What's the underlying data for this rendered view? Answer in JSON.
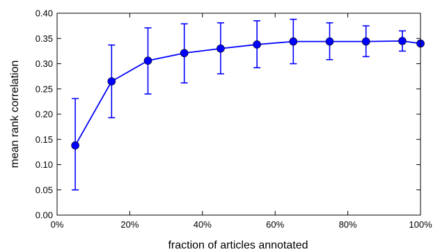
{
  "chart_data": {
    "type": "line",
    "title": "",
    "xlabel": "fraction of articles annotated",
    "ylabel": "mean rank correlation",
    "xlim": [
      0,
      100
    ],
    "ylim": [
      0.0,
      0.4
    ],
    "x_ticks": [
      0,
      20,
      40,
      60,
      80,
      100
    ],
    "x_tick_labels": [
      "0%",
      "20%",
      "40%",
      "60%",
      "80%",
      "100%"
    ],
    "y_ticks": [
      0.0,
      0.05,
      0.1,
      0.15,
      0.2,
      0.25,
      0.3,
      0.35,
      0.4
    ],
    "y_tick_labels": [
      "0.00",
      "0.05",
      "0.10",
      "0.15",
      "0.20",
      "0.25",
      "0.30",
      "0.35",
      "0.40"
    ],
    "grid": false,
    "legend": "none",
    "series": [
      {
        "color": "#0000ff",
        "marker": "circle",
        "x": [
          5,
          15,
          25,
          35,
          45,
          55,
          65,
          75,
          85,
          95,
          100
        ],
        "y": [
          0.138,
          0.265,
          0.306,
          0.321,
          0.33,
          0.338,
          0.344,
          0.344,
          0.344,
          0.345,
          0.34
        ],
        "err_low": [
          0.05,
          0.193,
          0.24,
          0.262,
          0.28,
          0.292,
          0.3,
          0.308,
          0.314,
          0.325,
          0.34
        ],
        "err_high": [
          0.231,
          0.337,
          0.371,
          0.379,
          0.381,
          0.385,
          0.388,
          0.381,
          0.375,
          0.365,
          0.34
        ]
      }
    ]
  }
}
